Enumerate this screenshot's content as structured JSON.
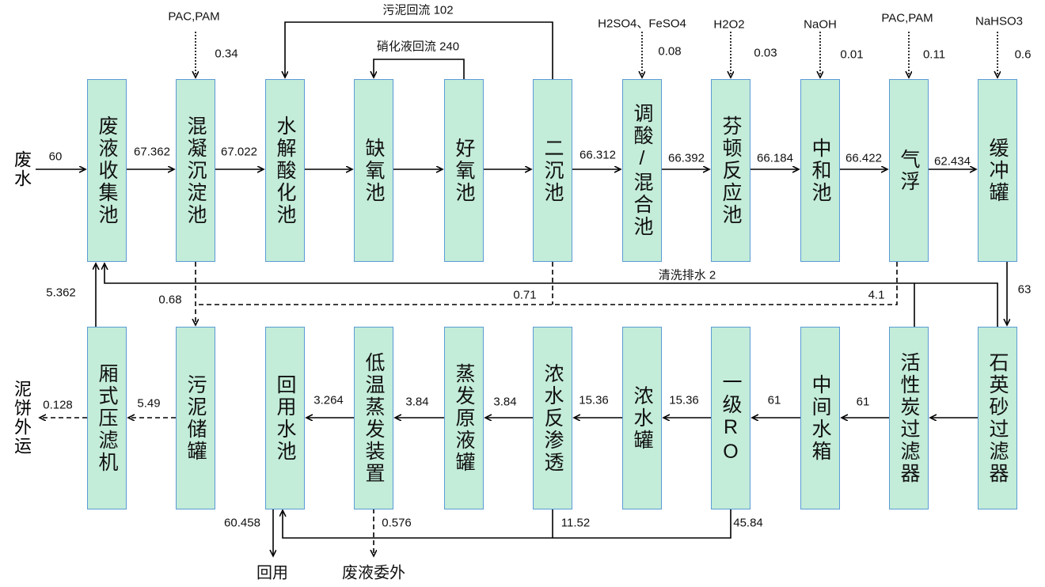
{
  "inlet": {
    "label": "废水",
    "flow": "60"
  },
  "top_nodes": [
    "废液收集池",
    "混凝沉淀池",
    "水解酸化池",
    "缺氧池",
    "好氧池",
    "二沉池",
    "调酸/混合池",
    "芬顿反应池",
    "中和池",
    "气浮",
    "缓冲罐"
  ],
  "top_flows": [
    "67.362",
    "67.022",
    "66.312",
    "66.392",
    "66.184",
    "66.422",
    "62.434"
  ],
  "dosing": [
    {
      "chemical": "PAC,PAM",
      "amount": "0.34"
    },
    {
      "chemical": "H2SO4、FeSO4",
      "amount": "0.08"
    },
    {
      "chemical": "H2O2",
      "amount": "0.03"
    },
    {
      "chemical": "NaOH",
      "amount": "0.01"
    },
    {
      "chemical": "PAC,PAM",
      "amount": "0.11"
    },
    {
      "chemical": "NaHSO3",
      "amount": "0.6"
    }
  ],
  "recycles": {
    "sludge": "污泥回流 102",
    "nitrate": "硝化液回流  240"
  },
  "rinse": "清洗排水 2",
  "buffer_out": "63",
  "press_return": "5.362",
  "sludge_flows": [
    "0.68",
    "0.71",
    "4.1"
  ],
  "bottom_nodes": [
    "厢式压滤机",
    "污泥储罐",
    "回用水池",
    "低温蒸发装置",
    "蒸发原液罐",
    "浓水反渗透",
    "浓水罐",
    "一级RO",
    "中间水箱",
    "活性炭过滤器",
    "石英砂过滤器"
  ],
  "bottom_flows": [
    "0.128",
    "5.49",
    "3.264",
    "3.84",
    "3.84",
    "15.36",
    "15.36",
    "61",
    "61"
  ],
  "outlets": {
    "cake": "泥饼外运",
    "reuse": "回用",
    "reuse_flow": "60.458",
    "waste": "废液委外",
    "waste_flow": "0.576",
    "ro2_return": "11.52",
    "ro1_return": "45.84"
  }
}
